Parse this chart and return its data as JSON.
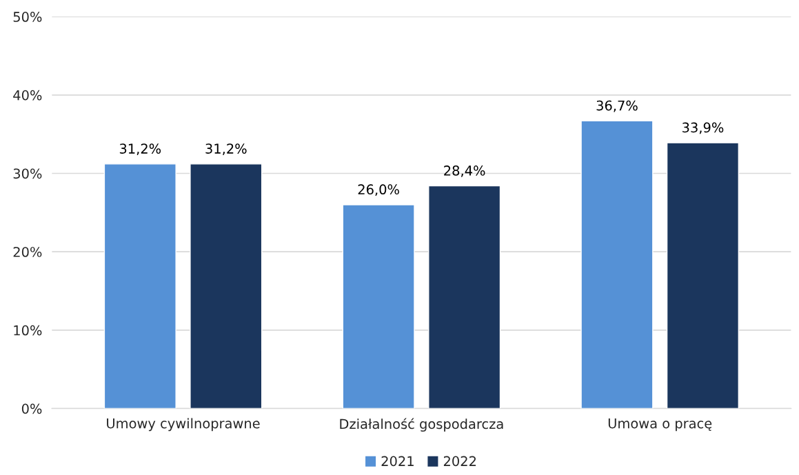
{
  "chart_data": {
    "type": "bar",
    "categories": [
      "Umowy cywilnoprawne",
      "Działalność gospodarcza",
      "Umowa o pracę"
    ],
    "series": [
      {
        "name": "2021",
        "color": "#5591d6",
        "values": [
          31.2,
          26.0,
          36.7
        ],
        "value_labels": [
          "31,2%",
          "26,0%",
          "36,7%"
        ]
      },
      {
        "name": "2022",
        "color": "#1b365d",
        "values": [
          31.2,
          28.4,
          33.9
        ],
        "value_labels": [
          "31,2%",
          "28,4%",
          "33,9%"
        ]
      }
    ],
    "ylim": [
      0,
      50
    ],
    "yticks": [
      {
        "value": 0,
        "label": "0%"
      },
      {
        "value": 10,
        "label": "10%"
      },
      {
        "value": 20,
        "label": "20%"
      },
      {
        "value": 30,
        "label": "30%"
      },
      {
        "value": 40,
        "label": "40%"
      },
      {
        "value": 50,
        "label": "50%"
      }
    ],
    "grid": "y",
    "legend": "bottom"
  }
}
